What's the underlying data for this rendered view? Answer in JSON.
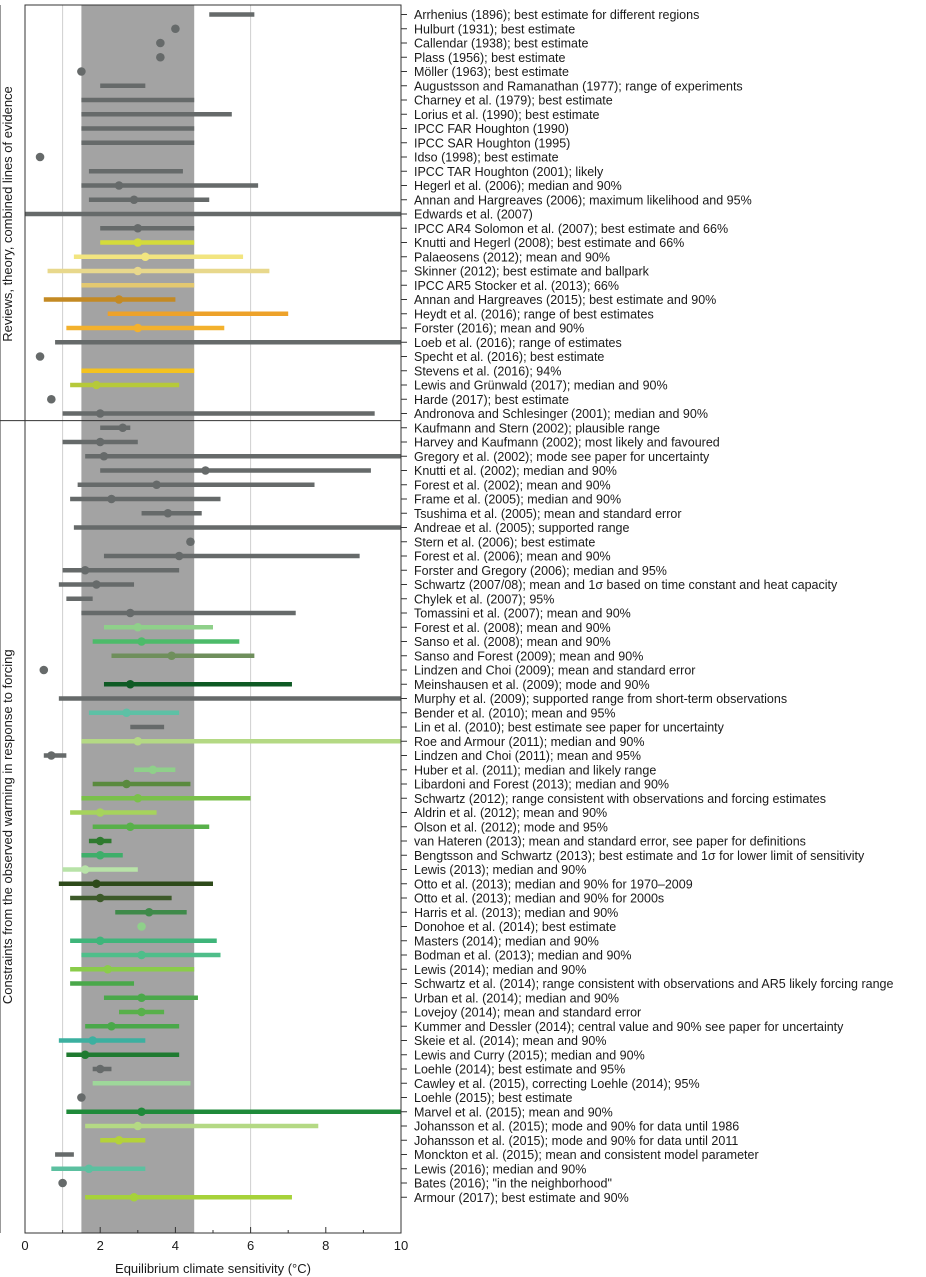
{
  "chart_data": {
    "type": "range-plot",
    "xlabel": "Equilibrium climate sensitivity (°C)",
    "xlim": [
      0,
      10
    ],
    "xticks": [
      0,
      2,
      4,
      6,
      8,
      10
    ],
    "shaded_band": [
      1.5,
      4.5
    ],
    "groups": [
      {
        "name": "Reviews, theory, combined lines of evidence",
        "start": 0,
        "end": 28
      },
      {
        "name": "Constraints from the observed warming in response to forcing",
        "start": 29,
        "end": 85
      }
    ],
    "studies": [
      {
        "label": "Arrhenius (1896); best estimate for different regions",
        "lo": 4.9,
        "hi": 6.1,
        "mid": null,
        "color": "#666a6a"
      },
      {
        "label": "Hulburt (1931); best estimate",
        "lo": null,
        "hi": null,
        "mid": 4.0,
        "color": "#666a6a"
      },
      {
        "label": "Callendar (1938); best estimate",
        "lo": null,
        "hi": null,
        "mid": 3.6,
        "color": "#666a6a"
      },
      {
        "label": "Plass (1956); best estimate",
        "lo": null,
        "hi": null,
        "mid": 3.6,
        "color": "#666a6a"
      },
      {
        "label": "Möller (1963); best estimate",
        "lo": null,
        "hi": null,
        "mid": 1.5,
        "color": "#666a6a"
      },
      {
        "label": "Augustsson and Ramanathan (1977); range of experiments",
        "lo": 2.0,
        "hi": 3.2,
        "mid": null,
        "color": "#666a6a"
      },
      {
        "label": "Charney et al. (1979); best estimate",
        "lo": 1.5,
        "hi": 4.5,
        "mid": null,
        "color": "#666a6a"
      },
      {
        "label": "Lorius et al. (1990); best estimate",
        "lo": 1.5,
        "hi": 5.5,
        "mid": null,
        "color": "#666a6a"
      },
      {
        "label": "IPCC FAR Houghton (1990)",
        "lo": 1.5,
        "hi": 4.5,
        "mid": null,
        "color": "#666a6a"
      },
      {
        "label": "IPCC SAR Houghton (1995)",
        "lo": 1.5,
        "hi": 4.5,
        "mid": null,
        "color": "#666a6a"
      },
      {
        "label": "Idso (1998); best estimate",
        "lo": null,
        "hi": null,
        "mid": 0.4,
        "color": "#666a6a"
      },
      {
        "label": "IPCC TAR Houghton (2001); likely",
        "lo": 1.7,
        "hi": 4.2,
        "mid": null,
        "color": "#666a6a"
      },
      {
        "label": "Hegerl et al. (2006); median and 90%",
        "lo": 1.5,
        "hi": 6.2,
        "mid": 2.5,
        "color": "#666a6a"
      },
      {
        "label": "Annan and Hargreaves (2006); maximum likelihood and 95%",
        "lo": 1.7,
        "hi": 4.9,
        "mid": 2.9,
        "color": "#666a6a"
      },
      {
        "label": "Edwards et al. (2007)",
        "lo": 0.0,
        "hi": 10.0,
        "mid": null,
        "color": "#666a6a"
      },
      {
        "label": "IPCC AR4 Solomon et al. (2007); best estimate and 66%",
        "lo": 2.0,
        "hi": 4.5,
        "mid": 3.0,
        "color": "#666a6a"
      },
      {
        "label": "Knutti and Hegerl (2008); best estimate and 66%",
        "lo": 2.0,
        "hi": 4.5,
        "mid": 3.0,
        "color": "#d4db3a"
      },
      {
        "label": "Palaeosens (2012); mean and 90%",
        "lo": 1.3,
        "hi": 5.8,
        "mid": 3.2,
        "color": "#f2e580"
      },
      {
        "label": "Skinner (2012); best estimate and ballpark",
        "lo": 0.6,
        "hi": 6.5,
        "mid": 3.0,
        "color": "#e8d88c"
      },
      {
        "label": "IPCC AR5 Stocker et al. (2013); 66%",
        "lo": 1.5,
        "hi": 4.5,
        "mid": null,
        "color": "#e3c870"
      },
      {
        "label": "Annan and Hargreaves (2015); best estimate and 90%",
        "lo": 0.5,
        "hi": 4.0,
        "mid": 2.5,
        "color": "#c48a24"
      },
      {
        "label": "Heydt et al. (2016); range of best estimates",
        "lo": 2.2,
        "hi": 7.0,
        "mid": null,
        "color": "#eda22a"
      },
      {
        "label": "Forster (2016); mean and 90%",
        "lo": 1.1,
        "hi": 5.3,
        "mid": 3.0,
        "color": "#f3b12d"
      },
      {
        "label": "Loeb et al. (2016); range of estimates",
        "lo": 0.8,
        "hi": 10.0,
        "mid": null,
        "color": "#666a6a"
      },
      {
        "label": "Specht et al. (2016); best estimate",
        "lo": null,
        "hi": null,
        "mid": 0.4,
        "color": "#666a6a"
      },
      {
        "label": "Stevens et al. (2016); 94%",
        "lo": 1.5,
        "hi": 4.5,
        "mid": null,
        "color": "#f4c21f"
      },
      {
        "label": "Lewis and Grünwald (2017); median and 90%",
        "lo": 1.2,
        "hi": 4.1,
        "mid": 1.9,
        "color": "#b6c93a"
      },
      {
        "label": "Harde (2017); best estimate",
        "lo": null,
        "hi": null,
        "mid": 0.7,
        "color": "#666a6a"
      },
      {
        "label": "Andronova and Schlesinger (2001); median and 90%",
        "lo": 1.0,
        "hi": 9.3,
        "mid": 2.0,
        "color": "#666a6a"
      },
      {
        "label": "Kaufmann and Stern (2002); plausible range",
        "lo": 2.0,
        "hi": 2.8,
        "mid": 2.6,
        "color": "#666a6a"
      },
      {
        "label": "Harvey and Kaufmann (2002); most likely and favoured",
        "lo": 1.0,
        "hi": 3.0,
        "mid": 2.0,
        "color": "#666a6a"
      },
      {
        "label": "Gregory et al. (2002); mode see paper for uncertainty",
        "lo": 1.6,
        "hi": 10.0,
        "mid": 2.1,
        "color": "#666a6a"
      },
      {
        "label": "Knutti et al. (2002); median and 90%",
        "lo": 2.0,
        "hi": 9.2,
        "mid": 4.8,
        "color": "#666a6a"
      },
      {
        "label": "Forest et al. (2002); mean and 90%",
        "lo": 1.4,
        "hi": 7.7,
        "mid": 3.5,
        "color": "#666a6a"
      },
      {
        "label": "Frame et al. (2005); median and 90%",
        "lo": 1.2,
        "hi": 5.2,
        "mid": 2.3,
        "color": "#666a6a"
      },
      {
        "label": "Tsushima et al. (2005); mean and standard error",
        "lo": 3.1,
        "hi": 4.7,
        "mid": 3.8,
        "color": "#666a6a"
      },
      {
        "label": "Andreae et al. (2005); supported range",
        "lo": 1.3,
        "hi": 10.0,
        "mid": null,
        "color": "#666a6a"
      },
      {
        "label": "Stern et al. (2006); best estimate",
        "lo": null,
        "hi": null,
        "mid": 4.4,
        "color": "#666a6a"
      },
      {
        "label": "Forest et al. (2006); mean and 90%",
        "lo": 2.1,
        "hi": 8.9,
        "mid": 4.1,
        "color": "#666a6a"
      },
      {
        "label": "Forster and Gregory (2006); median and 95%",
        "lo": 1.0,
        "hi": 4.1,
        "mid": 1.6,
        "color": "#666a6a"
      },
      {
        "label": "Schwartz (2007/08); mean and 1σ based on time constant and heat capacity",
        "lo": 0.9,
        "hi": 2.9,
        "mid": 1.9,
        "color": "#666a6a"
      },
      {
        "label": "Chylek et al. (2007); 95%",
        "lo": 1.1,
        "hi": 1.8,
        "mid": null,
        "color": "#666a6a"
      },
      {
        "label": "Tomassini et al. (2007); mean and 90%",
        "lo": 1.5,
        "hi": 7.2,
        "mid": 2.8,
        "color": "#666a6a"
      },
      {
        "label": "Forest et al. (2008); mean and 90%",
        "lo": 2.1,
        "hi": 5.0,
        "mid": 3.0,
        "color": "#8fd08a"
      },
      {
        "label": "Sanso et al. (2008); mean and 90%",
        "lo": 1.8,
        "hi": 5.7,
        "mid": 3.1,
        "color": "#4dbb6a"
      },
      {
        "label": "Sanso and Forest (2009); mean and 90%",
        "lo": 2.3,
        "hi": 6.1,
        "mid": 3.9,
        "color": "#6f8f5c"
      },
      {
        "label": "Lindzen and Choi (2009); mean and standard error",
        "lo": null,
        "hi": null,
        "mid": 0.5,
        "color": "#666a6a"
      },
      {
        "label": "Meinshausen et al. (2009); mode and 90%",
        "lo": 2.1,
        "hi": 7.1,
        "mid": 2.8,
        "color": "#0e5a24"
      },
      {
        "label": "Murphy et al. (2009); supported range from short-term observations",
        "lo": 0.9,
        "hi": 10.0,
        "mid": null,
        "color": "#666a6a"
      },
      {
        "label": "Bender et al. (2010); mean and 95%",
        "lo": 1.7,
        "hi": 4.1,
        "mid": 2.7,
        "color": "#5dc0a5"
      },
      {
        "label": "Lin et al. (2010); best estimate see paper for uncertainty",
        "lo": 2.8,
        "hi": 3.7,
        "mid": null,
        "color": "#666a6a"
      },
      {
        "label": "Roe and Armour (2011); median and 90%",
        "lo": 1.5,
        "hi": 10.0,
        "mid": 3.0,
        "color": "#b4d984"
      },
      {
        "label": "Lindzen and Choi (2011); mean and 95%",
        "lo": 0.5,
        "hi": 1.1,
        "mid": 0.7,
        "color": "#666a6a"
      },
      {
        "label": "Huber et al. (2011); median and likely range",
        "lo": 2.9,
        "hi": 4.0,
        "mid": 3.4,
        "color": "#8fd08a"
      },
      {
        "label": "Libardoni and Forest (2013); median and 90%",
        "lo": 1.8,
        "hi": 4.4,
        "mid": 2.7,
        "color": "#5a8a3e"
      },
      {
        "label": "Schwartz (2012); range consistent with observations and forcing estimates",
        "lo": 1.5,
        "hi": 6.0,
        "mid": 3.0,
        "color": "#7ac04a"
      },
      {
        "label": "Aldrin et al. (2012); mean and 90%",
        "lo": 1.2,
        "hi": 3.5,
        "mid": 2.0,
        "color": "#a6d35c"
      },
      {
        "label": "Olson et al. (2012); mode and 95%",
        "lo": 1.8,
        "hi": 4.9,
        "mid": 2.8,
        "color": "#58b04a"
      },
      {
        "label": "van Hateren (2013); mean and standard error, see paper for definitions",
        "lo": 1.7,
        "hi": 2.3,
        "mid": 2.0,
        "color": "#2f7a2f"
      },
      {
        "label": "Bengtsson and Schwartz (2013); best estimate and 1σ for lower limit of sensitivity",
        "lo": 1.5,
        "hi": 2.6,
        "mid": 2.0,
        "color": "#3fae6a"
      },
      {
        "label": "Lewis (2013); median and 90%",
        "lo": 1.0,
        "hi": 3.0,
        "mid": 1.6,
        "color": "#b8e3a8"
      },
      {
        "label": "Otto et al. (2013); median and 90% for 1970–2009",
        "lo": 0.9,
        "hi": 5.0,
        "mid": 1.9,
        "color": "#2e4a1a"
      },
      {
        "label": "Otto et al. (2013); median and 90% for 2000s",
        "lo": 1.2,
        "hi": 3.9,
        "mid": 2.0,
        "color": "#3d5a2a"
      },
      {
        "label": "Harris et al. (2013); median and 90%",
        "lo": 2.4,
        "hi": 4.3,
        "mid": 3.3,
        "color": "#3f8a4a"
      },
      {
        "label": "Donohoe et al. (2014); best estimate",
        "lo": null,
        "hi": null,
        "mid": 3.1,
        "color": "#8fd08a"
      },
      {
        "label": "Masters (2014); median and 90%",
        "lo": 1.2,
        "hi": 5.1,
        "mid": 2.0,
        "color": "#3fb57a"
      },
      {
        "label": "Bodman et al. (2013); median and 90%",
        "lo": 1.5,
        "hi": 5.2,
        "mid": 3.1,
        "color": "#4fbe8a"
      },
      {
        "label": "Lewis (2014); median and 90%",
        "lo": 1.2,
        "hi": 4.5,
        "mid": 2.2,
        "color": "#8acc4a"
      },
      {
        "label": "Schwartz et al. (2014); range consistent with observations and AR5 likely forcing range",
        "lo": 1.2,
        "hi": 2.9,
        "mid": null,
        "color": "#4aa84a"
      },
      {
        "label": "Urban et al. (2014); median and 90%",
        "lo": 2.1,
        "hi": 4.6,
        "mid": 3.1,
        "color": "#4aa84a"
      },
      {
        "label": "Lovejoy (2014); mean and standard error",
        "lo": 2.5,
        "hi": 3.7,
        "mid": 3.1,
        "color": "#58b04a"
      },
      {
        "label": "Kummer and Dessler (2014); central value and 90% see paper for uncertainty",
        "lo": 1.6,
        "hi": 4.1,
        "mid": 2.3,
        "color": "#4aa84a"
      },
      {
        "label": "Skeie et al. (2014); mean and 90%",
        "lo": 0.9,
        "hi": 3.2,
        "mid": 1.8,
        "color": "#3cb0a0"
      },
      {
        "label": "Lewis and Curry (2015); median and 90%",
        "lo": 1.1,
        "hi": 4.1,
        "mid": 1.6,
        "color": "#1f7a30"
      },
      {
        "label": "Loehle (2014); best estimate and 95%",
        "lo": 1.8,
        "hi": 2.3,
        "mid": 2.0,
        "color": "#666a6a"
      },
      {
        "label": "Cawley et al. (2015), correcting Loehle (2014); 95%",
        "lo": 1.8,
        "hi": 4.4,
        "mid": null,
        "color": "#9ed79a"
      },
      {
        "label": "Loehle (2015); best estimate",
        "lo": null,
        "hi": null,
        "mid": 1.5,
        "color": "#666a6a"
      },
      {
        "label": "Marvel et al. (2015); mean and 90%",
        "lo": 1.1,
        "hi": 10.0,
        "mid": 3.1,
        "color": "#1f8a3a"
      },
      {
        "label": "Johansson et al. (2015); mode and 90% for data until 1986",
        "lo": 1.6,
        "hi": 7.8,
        "mid": 3.0,
        "color": "#b4d984"
      },
      {
        "label": "Johansson et al. (2015); mode and 90% for data until 2011",
        "lo": 2.0,
        "hi": 3.2,
        "mid": 2.5,
        "color": "#b4d23a"
      },
      {
        "label": "Monckton et al. (2015); mean and consistent model parameter",
        "lo": 0.8,
        "hi": 1.3,
        "mid": null,
        "color": "#666a6a"
      },
      {
        "label": "Lewis (2016); median and 90%",
        "lo": 0.7,
        "hi": 3.2,
        "mid": 1.7,
        "color": "#5cc0a0"
      },
      {
        "label": "Bates (2016); \"in the neighborhood\"",
        "lo": null,
        "hi": null,
        "mid": 1.0,
        "color": "#666a6a"
      },
      {
        "label": "Armour (2017); best estimate and 90%",
        "lo": 1.6,
        "hi": 7.1,
        "mid": 2.9,
        "color": "#a6d23a"
      }
    ]
  }
}
